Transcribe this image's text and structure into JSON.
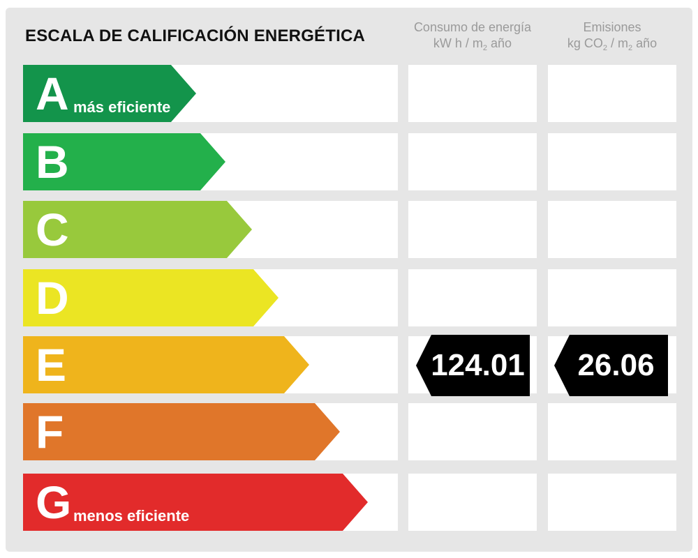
{
  "title": "ESCALA DE CALIFICACIÓN ENERGÉTICA",
  "columns": {
    "consumo": {
      "line1": "Consumo de energía",
      "unit_a": "kW h / m",
      "unit_sub": "2",
      "unit_b": " año"
    },
    "emisiones": {
      "line1": "Emisiones",
      "unit_a": "kg CO",
      "unit_sub1": "2",
      "unit_mid": " / m",
      "unit_sub2": "2",
      "unit_b": " año"
    }
  },
  "grades": [
    {
      "letter": "A",
      "label": "más eficiente",
      "color": "#13944b"
    },
    {
      "letter": "B",
      "label": "",
      "color": "#23b04b"
    },
    {
      "letter": "C",
      "label": "",
      "color": "#98c93c"
    },
    {
      "letter": "D",
      "label": "",
      "color": "#ebe523"
    },
    {
      "letter": "E",
      "label": "",
      "color": "#efb41c"
    },
    {
      "letter": "F",
      "label": "",
      "color": "#e0762a"
    },
    {
      "letter": "G",
      "label": "menos eficiente",
      "color": "#e22b2b"
    }
  ],
  "result": {
    "grade": "E",
    "consumo": "124.01",
    "emisiones": "26.06",
    "badge_color": "#000000"
  }
}
